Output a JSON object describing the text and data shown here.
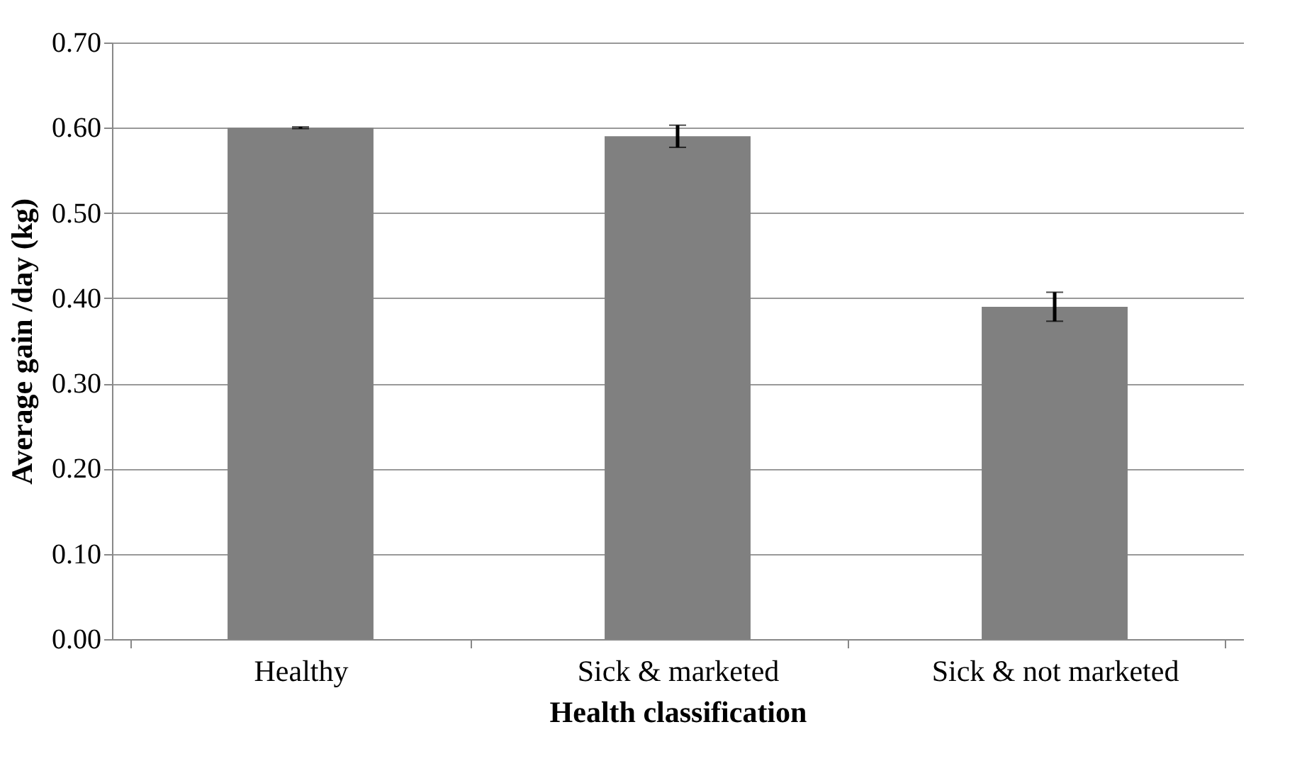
{
  "chart_data": {
    "type": "bar",
    "xlabel": "Health classification",
    "ylabel": "Average gain /day (kg)",
    "categories": [
      "Healthy",
      "Sick & marketed",
      "Sick & not marketed"
    ],
    "values": [
      0.6,
      0.59,
      0.39
    ],
    "errors": [
      0.001,
      0.013,
      0.017
    ],
    "color": "#808080",
    "ylim": [
      0,
      0.7
    ],
    "yticks": [
      {
        "value": 0,
        "label": "0.00"
      },
      {
        "value": 0.1,
        "label": "0.10"
      },
      {
        "value": 0.2,
        "label": "0.20"
      },
      {
        "value": 0.3,
        "label": "0.30"
      },
      {
        "value": 0.4,
        "label": "0.40"
      },
      {
        "value": 0.5,
        "label": "0.50"
      },
      {
        "value": 0.6,
        "label": "0.60"
      },
      {
        "value": 0.7,
        "label": "0.70"
      }
    ],
    "grid": "y"
  }
}
